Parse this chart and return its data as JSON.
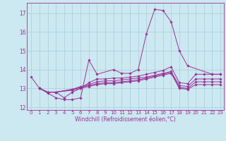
{
  "xlabel": "Windchill (Refroidissement éolien,°C)",
  "background_color": "#cce8f0",
  "grid_color": "#aaccd8",
  "line_color": "#993399",
  "xlim": [
    -0.5,
    23.4
  ],
  "ylim": [
    11.85,
    17.55
  ],
  "yticks": [
    12,
    13,
    14,
    15,
    16,
    17
  ],
  "xticks": [
    0,
    1,
    2,
    3,
    4,
    5,
    6,
    7,
    8,
    9,
    10,
    11,
    12,
    13,
    14,
    15,
    16,
    17,
    18,
    19,
    20,
    21,
    22,
    23
  ],
  "curves": [
    {
      "x": [
        0,
        1,
        2,
        3,
        4,
        5,
        6,
        7,
        8,
        10,
        11,
        12,
        13,
        14,
        15,
        16,
        17,
        18,
        19,
        22,
        23
      ],
      "y": [
        13.6,
        13.0,
        12.75,
        12.5,
        12.4,
        12.4,
        12.5,
        14.5,
        13.75,
        14.0,
        13.8,
        13.8,
        14.0,
        15.9,
        17.2,
        17.15,
        16.55,
        15.0,
        14.2,
        13.75,
        13.75
      ]
    },
    {
      "x": [
        1,
        2,
        3,
        4,
        5,
        6,
        7,
        8,
        9,
        10,
        11,
        12,
        13,
        14,
        15,
        16,
        17,
        18,
        19,
        20,
        21,
        22,
        23
      ],
      "y": [
        13.0,
        12.8,
        12.8,
        12.5,
        12.8,
        13.0,
        13.3,
        13.5,
        13.5,
        13.55,
        13.55,
        13.6,
        13.65,
        13.75,
        13.85,
        13.95,
        14.15,
        13.3,
        13.25,
        13.75,
        13.75,
        13.75,
        13.75
      ]
    },
    {
      "x": [
        1,
        2,
        3,
        5,
        6,
        7,
        8,
        9,
        10,
        11,
        12,
        13,
        14,
        15,
        16,
        17,
        18,
        19,
        20,
        21,
        22,
        23
      ],
      "y": [
        13.0,
        12.8,
        12.8,
        12.95,
        13.1,
        13.2,
        13.35,
        13.4,
        13.4,
        13.45,
        13.5,
        13.55,
        13.6,
        13.7,
        13.8,
        13.9,
        13.15,
        13.1,
        13.5,
        13.5,
        13.5,
        13.5
      ]
    },
    {
      "x": [
        1,
        2,
        3,
        5,
        6,
        7,
        8,
        9,
        10,
        11,
        12,
        13,
        14,
        15,
        16,
        17,
        18,
        19,
        20,
        21,
        22,
        23
      ],
      "y": [
        13.0,
        12.8,
        12.8,
        12.95,
        13.05,
        13.15,
        13.25,
        13.3,
        13.3,
        13.35,
        13.4,
        13.45,
        13.55,
        13.65,
        13.75,
        13.85,
        13.05,
        13.0,
        13.35,
        13.35,
        13.35,
        13.35
      ]
    },
    {
      "x": [
        1,
        2,
        3,
        5,
        6,
        7,
        8,
        9,
        10,
        11,
        12,
        13,
        14,
        15,
        16,
        17,
        18,
        19,
        20,
        21,
        22,
        23
      ],
      "y": [
        13.0,
        12.8,
        12.8,
        12.9,
        13.0,
        13.1,
        13.2,
        13.25,
        13.25,
        13.3,
        13.35,
        13.4,
        13.5,
        13.6,
        13.7,
        13.8,
        13.0,
        12.95,
        13.2,
        13.2,
        13.2,
        13.2
      ]
    }
  ]
}
